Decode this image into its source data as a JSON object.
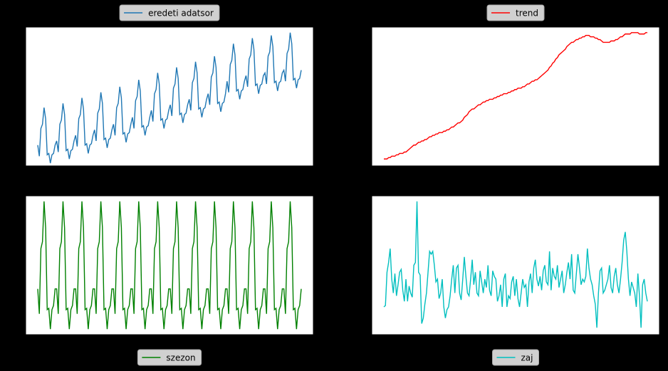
{
  "chart_data": [
    {
      "type": "line",
      "legend": "top",
      "ylim": [
        0,
        100
      ],
      "series": [
        {
          "name": "eredeti adatsor",
          "color": "#1f77b4",
          "values": [
            15,
            7,
            27,
            30,
            42,
            34,
            8,
            9,
            2,
            8,
            9,
            15,
            18,
            10,
            30,
            33,
            45,
            37,
            11,
            12,
            5,
            11,
            12,
            18,
            22,
            14,
            34,
            37,
            49,
            41,
            15,
            16,
            9,
            15,
            16,
            22,
            26,
            18,
            38,
            41,
            53,
            45,
            19,
            20,
            13,
            19,
            20,
            26,
            30,
            22,
            42,
            45,
            57,
            49,
            23,
            24,
            17,
            23,
            24,
            30,
            35,
            27,
            47,
            50,
            62,
            54,
            28,
            29,
            22,
            28,
            29,
            35,
            40,
            32,
            52,
            55,
            67,
            59,
            33,
            34,
            27,
            33,
            34,
            40,
            44,
            36,
            56,
            59,
            71,
            63,
            37,
            38,
            31,
            37,
            38,
            44,
            48,
            40,
            60,
            63,
            75,
            67,
            41,
            42,
            35,
            41,
            42,
            48,
            52,
            44,
            64,
            67,
            79,
            71,
            45,
            46,
            39,
            45,
            46,
            52,
            61,
            53,
            73,
            76,
            88,
            80,
            54,
            55,
            48,
            54,
            55,
            61,
            65,
            57,
            77,
            80,
            92,
            84,
            58,
            59,
            52,
            58,
            59,
            65,
            67,
            59,
            79,
            82,
            94,
            86,
            60,
            61,
            54,
            60,
            61,
            67,
            69,
            61,
            81,
            84,
            96,
            88,
            62,
            63,
            56,
            62,
            63,
            69
          ]
        }
      ]
    },
    {
      "type": "line",
      "legend": "top",
      "ylim": [
        0,
        100
      ],
      "series": [
        {
          "name": "trend",
          "color": "#ff0000",
          "values": [
            5,
            5,
            5,
            6,
            6,
            7,
            7,
            7,
            8,
            8,
            9,
            9,
            9,
            10,
            10,
            11,
            12,
            13,
            14,
            15,
            15,
            16,
            17,
            17,
            18,
            18,
            19,
            19,
            20,
            21,
            21,
            22,
            22,
            23,
            23,
            24,
            24,
            24,
            25,
            25,
            26,
            26,
            27,
            28,
            28,
            29,
            30,
            31,
            31,
            32,
            33,
            35,
            36,
            37,
            39,
            40,
            41,
            41,
            42,
            43,
            44,
            44,
            45,
            46,
            46,
            47,
            47,
            48,
            48,
            48,
            49,
            49,
            50,
            50,
            51,
            51,
            52,
            52,
            52,
            53,
            53,
            54,
            54,
            55,
            55,
            56,
            56,
            56,
            57,
            57,
            58,
            59,
            59,
            60,
            61,
            61,
            62,
            62,
            63,
            64,
            65,
            66,
            67,
            68,
            69,
            71,
            72,
            74,
            75,
            77,
            78,
            80,
            81,
            82,
            83,
            84,
            86,
            87,
            88,
            89,
            89,
            90,
            91,
            91,
            92,
            92,
            93,
            93,
            94,
            94,
            94,
            93,
            93,
            93,
            92,
            92,
            91,
            91,
            90,
            89,
            89,
            89,
            89,
            89,
            90,
            90,
            90,
            91,
            91,
            92,
            93,
            93,
            94,
            95,
            95,
            95,
            95,
            96,
            96,
            96,
            96,
            96,
            95,
            95,
            95,
            95,
            96,
            96
          ]
        }
      ]
    },
    {
      "type": "line",
      "legend": "bottom",
      "ylim": [
        0,
        100
      ],
      "series": [
        {
          "name": "szezon",
          "color": "#008000",
          "values": [
            33,
            15,
            62,
            67,
            96,
            77,
            18,
            19,
            4,
            18,
            21,
            33,
            33,
            15,
            62,
            67,
            96,
            77,
            18,
            19,
            4,
            18,
            21,
            33,
            33,
            15,
            62,
            67,
            96,
            77,
            18,
            19,
            4,
            18,
            21,
            33,
            33,
            15,
            62,
            67,
            96,
            77,
            18,
            19,
            4,
            18,
            21,
            33,
            33,
            15,
            62,
            67,
            96,
            77,
            18,
            19,
            4,
            18,
            21,
            33,
            33,
            15,
            62,
            67,
            96,
            77,
            18,
            19,
            4,
            18,
            21,
            33,
            33,
            15,
            62,
            67,
            96,
            77,
            18,
            19,
            4,
            18,
            21,
            33,
            33,
            15,
            62,
            67,
            96,
            77,
            18,
            19,
            4,
            18,
            21,
            33,
            33,
            15,
            62,
            67,
            96,
            77,
            18,
            19,
            4,
            18,
            21,
            33,
            33,
            15,
            62,
            67,
            96,
            77,
            18,
            19,
            4,
            18,
            21,
            33,
            33,
            15,
            62,
            67,
            96,
            77,
            18,
            19,
            4,
            18,
            21,
            33,
            33,
            15,
            62,
            67,
            96,
            77,
            18,
            19,
            4,
            18,
            21,
            33,
            33,
            15,
            62,
            67,
            96,
            77,
            18,
            19,
            4,
            18,
            21,
            33,
            33,
            15,
            62,
            67,
            96,
            77,
            18,
            19,
            4,
            18,
            21,
            33
          ]
        }
      ]
    },
    {
      "type": "line",
      "legend": "bottom",
      "ylim": [
        0,
        100
      ],
      "series": [
        {
          "name": "zaj",
          "color": "#00bfbf",
          "values": [
            20,
            21,
            45,
            52,
            62,
            40,
            30,
            44,
            28,
            36,
            45,
            47,
            32,
            24,
            40,
            24,
            35,
            30,
            27,
            50,
            52,
            96,
            45,
            43,
            8,
            12,
            22,
            30,
            45,
            60,
            58,
            60,
            50,
            38,
            40,
            26,
            30,
            40,
            20,
            12,
            18,
            20,
            28,
            40,
            50,
            30,
            48,
            50,
            30,
            25,
            40,
            56,
            42,
            30,
            28,
            40,
            54,
            36,
            45,
            30,
            28,
            46,
            38,
            30,
            40,
            34,
            50,
            32,
            28,
            46,
            42,
            40,
            24,
            28,
            36,
            20,
            40,
            44,
            20,
            28,
            26,
            38,
            42,
            28,
            40,
            26,
            20,
            30,
            40,
            34,
            36,
            20,
            38,
            44,
            30,
            48,
            54,
            40,
            35,
            42,
            32,
            46,
            50,
            38,
            36,
            60,
            32,
            48,
            42,
            40,
            50,
            34,
            40,
            46,
            30,
            36,
            45,
            52,
            40,
            58,
            32,
            30,
            44,
            58,
            48,
            36,
            40,
            38,
            42,
            62,
            48,
            40,
            36,
            28,
            22,
            5,
            30,
            46,
            48,
            30,
            32,
            36,
            40,
            50,
            34,
            30,
            42,
            48,
            36,
            30,
            40,
            52,
            68,
            74,
            60,
            40,
            28,
            38,
            34,
            30,
            20,
            44,
            28,
            5,
            36,
            40,
            30,
            24
          ]
        }
      ]
    }
  ]
}
